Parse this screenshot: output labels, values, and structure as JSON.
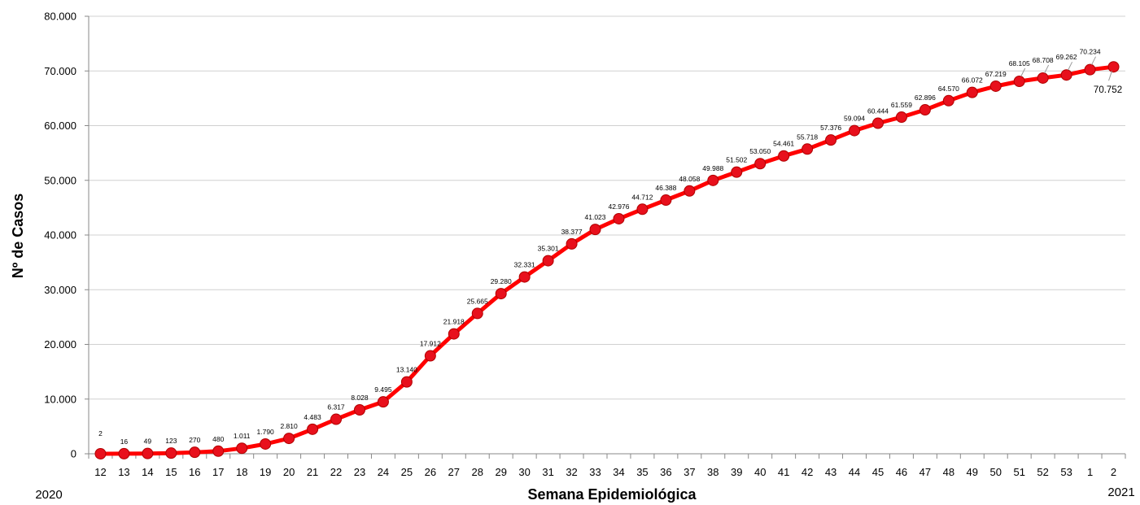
{
  "chart_data": {
    "type": "line",
    "xlabel": "Semana Epidemiológica",
    "ylabel": "Nº de Casos",
    "ylim": [
      0,
      80000
    ],
    "yticks": [
      "0",
      "10.000",
      "20.000",
      "30.000",
      "40.000",
      "50.000",
      "60.000",
      "70.000",
      "80.000"
    ],
    "grid": true,
    "year_start": "2020",
    "year_end": "2021",
    "categories": [
      "12",
      "13",
      "14",
      "15",
      "16",
      "17",
      "18",
      "19",
      "20",
      "21",
      "22",
      "23",
      "24",
      "25",
      "26",
      "27",
      "28",
      "29",
      "30",
      "31",
      "32",
      "33",
      "34",
      "35",
      "36",
      "37",
      "38",
      "39",
      "40",
      "41",
      "42",
      "43",
      "44",
      "45",
      "46",
      "47",
      "48",
      "49",
      "50",
      "51",
      "52",
      "53",
      "1",
      "2"
    ],
    "values": [
      2,
      16,
      49,
      123,
      270,
      480,
      1011,
      1790,
      2810,
      4483,
      6317,
      8028,
      9495,
      13140,
      17912,
      21918,
      25665,
      29280,
      32331,
      35301,
      38377,
      41023,
      42976,
      44712,
      46388,
      48058,
      49988,
      51502,
      53050,
      54461,
      55718,
      57376,
      59094,
      60444,
      61559,
      62896,
      64570,
      66072,
      67219,
      68105,
      68708,
      69262,
      70234,
      70752
    ],
    "value_labels": [
      "2",
      "16",
      "49",
      "123",
      "270",
      "480",
      "1.011",
      "1.790",
      "2.810",
      "4.483",
      "6.317",
      "8.028",
      "9.495",
      "13.140",
      "17.912",
      "21.918",
      "25.665",
      "29.280",
      "32.331",
      "35.301",
      "38.377",
      "41.023",
      "42.976",
      "44.712",
      "46.388",
      "48.058",
      "49.988",
      "51.502",
      "53.050",
      "54.461",
      "55.718",
      "57.376",
      "59.094",
      "60.444",
      "61.559",
      "62.896",
      "64.570",
      "66.072",
      "67.219",
      "68.105",
      "68.708",
      "69.262",
      "70.234",
      "70.752"
    ],
    "line_color": "#ff0000",
    "marker_color": "#e8101c"
  }
}
